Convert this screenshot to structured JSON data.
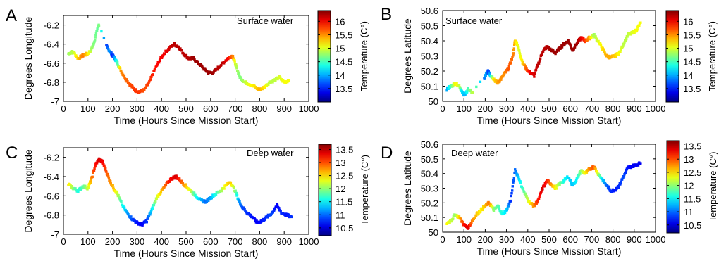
{
  "figure": {
    "xlabel": "Time (Hours Since Mission Start)",
    "colorbar_label": "Temperature (C°)"
  },
  "chart_data": [
    {
      "panel": "A",
      "type": "scatter",
      "annotation": "Surface water",
      "xlabel": "Time (Hours Since Mission Start)",
      "ylabel": "Degrees Longitude",
      "xlim": [
        0,
        1000
      ],
      "ylim": [
        -7,
        -6.1
      ],
      "xticks": [
        0,
        100,
        200,
        300,
        400,
        500,
        600,
        700,
        800,
        900,
        1000
      ],
      "yticks": [
        -7,
        -6.8,
        -6.6,
        -6.4,
        -6.2
      ],
      "ytick_labels": [
        "-7",
        "-6.8",
        "-6.6",
        "-6.4",
        "-6.2"
      ],
      "colorbar": {
        "min": 13.0,
        "max": 16.4,
        "ticks": [
          13.5,
          14,
          14.5,
          15,
          15.5,
          16
        ],
        "label": "Temperature (C°)"
      },
      "track": [
        [
          20,
          -6.5,
          14.8
        ],
        [
          40,
          -6.48,
          14.9
        ],
        [
          60,
          -6.55,
          15.3
        ],
        [
          80,
          -6.52,
          15.6
        ],
        [
          100,
          -6.5,
          15.2
        ],
        [
          115,
          -6.45,
          14.8
        ],
        [
          125,
          -6.38,
          14.7
        ],
        [
          140,
          -6.22,
          14.6
        ],
        [
          145,
          -6.2,
          14.7
        ],
        [
          175,
          -6.42,
          13.6
        ],
        [
          190,
          -6.48,
          14.0
        ],
        [
          200,
          -6.52,
          13.5
        ],
        [
          210,
          -6.55,
          14.0
        ],
        [
          220,
          -6.6,
          14.5
        ],
        [
          235,
          -6.68,
          15.5
        ],
        [
          250,
          -6.75,
          15.6
        ],
        [
          270,
          -6.82,
          15.7
        ],
        [
          290,
          -6.88,
          15.8
        ],
        [
          310,
          -6.9,
          15.8
        ],
        [
          330,
          -6.88,
          15.7
        ],
        [
          350,
          -6.8,
          15.8
        ],
        [
          370,
          -6.68,
          15.9
        ],
        [
          390,
          -6.58,
          16.0
        ],
        [
          410,
          -6.5,
          16.0
        ],
        [
          430,
          -6.45,
          16.1
        ],
        [
          450,
          -6.4,
          16.2
        ],
        [
          470,
          -6.43,
          16.2
        ],
        [
          490,
          -6.5,
          16.2
        ],
        [
          510,
          -6.55,
          16.2
        ],
        [
          530,
          -6.55,
          16.3
        ],
        [
          550,
          -6.6,
          16.3
        ],
        [
          570,
          -6.65,
          16.3
        ],
        [
          590,
          -6.7,
          16.3
        ],
        [
          610,
          -6.7,
          16.3
        ],
        [
          630,
          -6.65,
          16.2
        ],
        [
          650,
          -6.6,
          16.2
        ],
        [
          670,
          -6.55,
          16.0
        ],
        [
          690,
          -6.52,
          15.6
        ],
        [
          700,
          -6.6,
          15.0
        ],
        [
          710,
          -6.68,
          14.8
        ],
        [
          720,
          -6.75,
          14.7
        ],
        [
          740,
          -6.8,
          14.9
        ],
        [
          760,
          -6.82,
          15.1
        ],
        [
          780,
          -6.85,
          15.2
        ],
        [
          800,
          -6.88,
          15.4
        ],
        [
          820,
          -6.85,
          15.2
        ],
        [
          840,
          -6.8,
          14.9
        ],
        [
          860,
          -6.78,
          14.9
        ],
        [
          880,
          -6.75,
          15.0
        ],
        [
          900,
          -6.8,
          15.1
        ],
        [
          920,
          -6.78,
          15.1
        ]
      ]
    },
    {
      "panel": "B",
      "type": "scatter",
      "annotation": "Surface water",
      "xlabel": "Time (Hours Since Mission Start)",
      "ylabel": "Degrees Latitude",
      "xlim": [
        0,
        1000
      ],
      "ylim": [
        50,
        50.6
      ],
      "xticks": [
        0,
        100,
        200,
        300,
        400,
        500,
        600,
        700,
        800,
        900,
        1000
      ],
      "yticks": [
        50,
        50.1,
        50.2,
        50.3,
        50.4,
        50.5,
        50.6
      ],
      "ytick_labels": [
        "50",
        "50.1",
        "50.2",
        "50.3",
        "50.4",
        "50.5",
        "50.6"
      ],
      "colorbar": {
        "min": 13.0,
        "max": 16.4,
        "ticks": [
          13.5,
          14,
          14.5,
          15,
          15.5,
          16
        ],
        "label": "Temperature (C°)"
      },
      "track": [
        [
          20,
          50.08,
          14.0
        ],
        [
          40,
          50.1,
          14.5
        ],
        [
          60,
          50.12,
          15.2
        ],
        [
          80,
          50.1,
          14.9
        ],
        [
          90,
          50.06,
          14.2
        ],
        [
          105,
          50.04,
          14.0
        ],
        [
          120,
          50.08,
          14.5
        ],
        [
          140,
          50.06,
          14.9
        ],
        [
          195,
          50.15,
          13.8
        ],
        [
          205,
          50.18,
          14.0
        ],
        [
          215,
          50.2,
          13.6
        ],
        [
          225,
          50.17,
          14.2
        ],
        [
          240,
          50.15,
          15.2
        ],
        [
          255,
          50.12,
          15.4
        ],
        [
          270,
          50.14,
          15.5
        ],
        [
          290,
          50.18,
          15.5
        ],
        [
          310,
          50.22,
          15.7
        ],
        [
          330,
          50.3,
          15.6
        ],
        [
          340,
          50.4,
          15.3
        ],
        [
          350,
          50.38,
          15.1
        ],
        [
          360,
          50.33,
          15.0
        ],
        [
          375,
          50.26,
          15.2
        ],
        [
          390,
          50.22,
          15.6
        ],
        [
          410,
          50.19,
          16.0
        ],
        [
          430,
          50.17,
          16.1
        ],
        [
          450,
          50.25,
          16.2
        ],
        [
          470,
          50.33,
          16.2
        ],
        [
          490,
          50.36,
          16.2
        ],
        [
          510,
          50.34,
          16.3
        ],
        [
          530,
          50.32,
          16.3
        ],
        [
          550,
          50.35,
          16.3
        ],
        [
          570,
          50.38,
          16.3
        ],
        [
          590,
          50.4,
          16.3
        ],
        [
          610,
          50.34,
          16.3
        ],
        [
          630,
          50.38,
          16.3
        ],
        [
          650,
          50.42,
          16.1
        ],
        [
          670,
          50.4,
          15.8
        ],
        [
          690,
          50.42,
          15.4
        ],
        [
          710,
          50.44,
          14.8
        ],
        [
          730,
          50.4,
          15.0
        ],
        [
          750,
          50.35,
          15.2
        ],
        [
          770,
          50.3,
          15.4
        ],
        [
          790,
          50.29,
          15.4
        ],
        [
          810,
          50.3,
          15.3
        ],
        [
          830,
          50.32,
          15.1
        ],
        [
          850,
          50.38,
          14.9
        ],
        [
          870,
          50.44,
          14.9
        ],
        [
          890,
          50.45,
          15.0
        ],
        [
          910,
          50.47,
          15.1
        ],
        [
          930,
          50.52,
          15.1
        ]
      ]
    },
    {
      "panel": "C",
      "type": "scatter",
      "annotation": "Deep water",
      "xlabel": "Time (Hours Since Mission Start)",
      "ylabel": "Degrees Longitude",
      "xlim": [
        0,
        1000
      ],
      "ylim": [
        -7,
        -6.1
      ],
      "xticks": [
        0,
        100,
        200,
        300,
        400,
        500,
        600,
        700,
        800,
        900,
        1000
      ],
      "yticks": [
        -7,
        -6.8,
        -6.6,
        -6.4,
        -6.2
      ],
      "ytick_labels": [
        "-7",
        "-6.8",
        "-6.6",
        "-6.4",
        "-6.2"
      ],
      "colorbar": {
        "min": 10.2,
        "max": 13.7,
        "ticks": [
          10.5,
          11,
          11.5,
          12,
          12.5,
          13,
          13.5
        ],
        "label": "Temperature (C°)"
      },
      "track": [
        [
          20,
          -6.48,
          12.5
        ],
        [
          40,
          -6.52,
          12.0
        ],
        [
          60,
          -6.55,
          11.6
        ],
        [
          80,
          -6.5,
          11.8
        ],
        [
          100,
          -6.52,
          12.2
        ],
        [
          115,
          -6.42,
          12.8
        ],
        [
          130,
          -6.28,
          13.2
        ],
        [
          145,
          -6.22,
          13.4
        ],
        [
          160,
          -6.25,
          13.3
        ],
        [
          175,
          -6.35,
          13.0
        ],
        [
          190,
          -6.45,
          12.8
        ],
        [
          205,
          -6.52,
          12.6
        ],
        [
          220,
          -6.58,
          12.2
        ],
        [
          240,
          -6.7,
          11.6
        ],
        [
          260,
          -6.78,
          11.2
        ],
        [
          280,
          -6.84,
          10.9
        ],
        [
          300,
          -6.88,
          10.7
        ],
        [
          320,
          -6.9,
          10.6
        ],
        [
          340,
          -6.86,
          10.8
        ],
        [
          360,
          -6.75,
          11.4
        ],
        [
          380,
          -6.62,
          12.2
        ],
        [
          400,
          -6.55,
          12.6
        ],
        [
          420,
          -6.48,
          13.0
        ],
        [
          440,
          -6.42,
          13.3
        ],
        [
          460,
          -6.4,
          13.4
        ],
        [
          480,
          -6.45,
          13.0
        ],
        [
          500,
          -6.5,
          12.6
        ],
        [
          520,
          -6.55,
          12.2
        ],
        [
          540,
          -6.6,
          11.6
        ],
        [
          560,
          -6.65,
          11.3
        ],
        [
          580,
          -6.66,
          11.0
        ],
        [
          600,
          -6.62,
          11.2
        ],
        [
          620,
          -6.58,
          11.6
        ],
        [
          640,
          -6.55,
          12.0
        ],
        [
          660,
          -6.5,
          12.4
        ],
        [
          680,
          -6.45,
          12.6
        ],
        [
          700,
          -6.55,
          12.0
        ],
        [
          715,
          -6.65,
          11.2
        ],
        [
          730,
          -6.72,
          10.9
        ],
        [
          750,
          -6.78,
          10.8
        ],
        [
          770,
          -6.82,
          10.7
        ],
        [
          790,
          -6.88,
          10.6
        ],
        [
          810,
          -6.86,
          10.7
        ],
        [
          830,
          -6.82,
          10.8
        ],
        [
          850,
          -6.78,
          10.9
        ],
        [
          870,
          -6.7,
          10.6
        ],
        [
          890,
          -6.78,
          10.8
        ],
        [
          910,
          -6.8,
          10.7
        ],
        [
          930,
          -6.82,
          10.8
        ]
      ]
    },
    {
      "panel": "D",
      "type": "scatter",
      "annotation": "Deep water",
      "xlabel": "Time (Hours Since Mission Start)",
      "ylabel": "Degrees Latitude",
      "xlim": [
        0,
        1000
      ],
      "ylim": [
        50,
        50.6
      ],
      "xticks": [
        0,
        100,
        200,
        300,
        400,
        500,
        600,
        700,
        800,
        900,
        1000
      ],
      "yticks": [
        50,
        50.1,
        50.2,
        50.3,
        50.4,
        50.5,
        50.6
      ],
      "ytick_labels": [
        "50",
        "50.1",
        "50.2",
        "50.3",
        "50.4",
        "50.5",
        "50.6"
      ],
      "colorbar": {
        "min": 10.2,
        "max": 13.7,
        "ticks": [
          10.5,
          11,
          11.5,
          12,
          12.5,
          13,
          13.5
        ],
        "label": "Temperature (C°)"
      },
      "track": [
        [
          20,
          50.06,
          12.4
        ],
        [
          40,
          50.08,
          12.2
        ],
        [
          60,
          50.12,
          12.0
        ],
        [
          80,
          50.1,
          12.6
        ],
        [
          100,
          50.05,
          13.2
        ],
        [
          120,
          50.03,
          13.4
        ],
        [
          140,
          50.08,
          12.8
        ],
        [
          160,
          50.12,
          12.6
        ],
        [
          180,
          50.15,
          12.4
        ],
        [
          200,
          50.18,
          12.6
        ],
        [
          220,
          50.2,
          12.9
        ],
        [
          240,
          50.15,
          12.0
        ],
        [
          260,
          50.18,
          11.8
        ],
        [
          280,
          50.12,
          11.6
        ],
        [
          300,
          50.15,
          11.4
        ],
        [
          320,
          50.22,
          10.8
        ],
        [
          340,
          50.42,
          11.0
        ],
        [
          355,
          50.38,
          11.3
        ],
        [
          370,
          50.32,
          11.6
        ],
        [
          390,
          50.25,
          12.0
        ],
        [
          410,
          50.2,
          12.4
        ],
        [
          430,
          50.18,
          12.8
        ],
        [
          450,
          50.22,
          13.2
        ],
        [
          470,
          50.3,
          13.4
        ],
        [
          490,
          50.35,
          13.2
        ],
        [
          510,
          50.33,
          12.8
        ],
        [
          530,
          50.3,
          12.4
        ],
        [
          550,
          50.33,
          12.0
        ],
        [
          570,
          50.35,
          11.6
        ],
        [
          590,
          50.38,
          11.4
        ],
        [
          610,
          50.32,
          11.3
        ],
        [
          630,
          50.36,
          11.5
        ],
        [
          650,
          50.42,
          12.0
        ],
        [
          670,
          50.4,
          12.4
        ],
        [
          690,
          50.43,
          12.8
        ],
        [
          710,
          50.45,
          13.0
        ],
        [
          730,
          50.4,
          12.2
        ],
        [
          750,
          50.36,
          11.4
        ],
        [
          770,
          50.32,
          11.0
        ],
        [
          790,
          50.28,
          10.8
        ],
        [
          810,
          50.29,
          10.7
        ],
        [
          830,
          50.32,
          10.8
        ],
        [
          850,
          50.38,
          10.9
        ],
        [
          870,
          50.44,
          10.7
        ],
        [
          890,
          50.45,
          10.6
        ],
        [
          910,
          50.46,
          10.6
        ],
        [
          930,
          50.47,
          10.6
        ]
      ]
    }
  ]
}
